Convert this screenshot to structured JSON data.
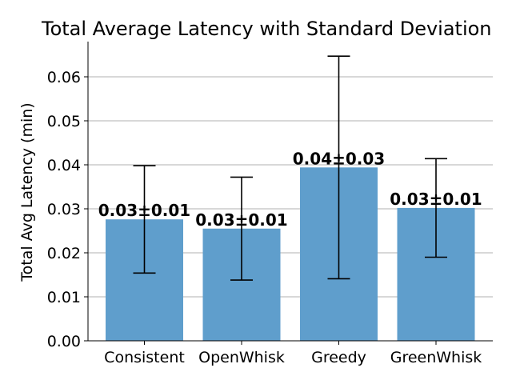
{
  "chart_data": {
    "type": "bar",
    "title": "Total Average Latency with Standard Deviation",
    "xlabel": "",
    "ylabel": "Total Avg Latency (min)",
    "categories": [
      "Consistent",
      "OpenWhisk",
      "Greedy",
      "GreenWhisk"
    ],
    "values": [
      0.0276,
      0.0255,
      0.0394,
      0.0302
    ],
    "std": [
      0.0122,
      0.0117,
      0.0253,
      0.0112
    ],
    "data_labels": [
      "0.03±0.01",
      "0.03±0.01",
      "0.04±0.03",
      "0.03±0.01"
    ],
    "ylim": [
      0,
      0.068
    ],
    "yticks": [
      "0.00",
      "0.01",
      "0.02",
      "0.03",
      "0.04",
      "0.05",
      "0.06"
    ],
    "ytick_values": [
      0,
      0.01,
      0.02,
      0.03,
      0.04,
      0.05,
      0.06
    ],
    "grid": "horizontal",
    "bar_color": "#5f9ecc",
    "grid_color": "#b0b0b0"
  }
}
